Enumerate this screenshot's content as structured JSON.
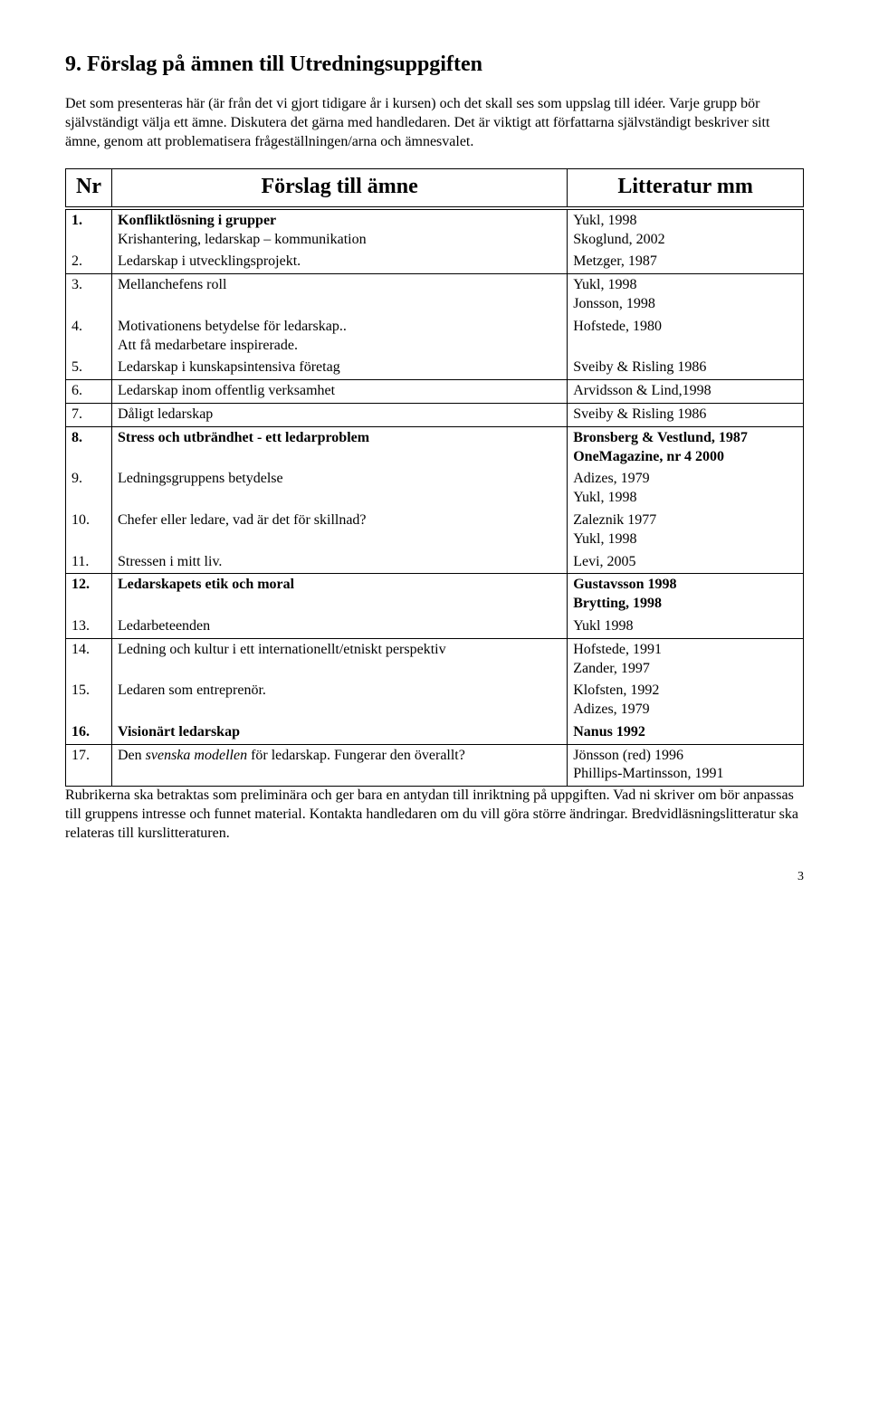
{
  "title": "9. Förslag på ämnen till Utredningsuppgiften",
  "para1": "Det som presenteras här (är från det vi gjort tidigare år i kursen) och det skall ses som uppslag till idéer. Varje grupp bör självständigt välja ett ämne. Diskutera det gärna med handledaren. Det är viktigt att författarna självständigt beskriver sitt ämne, genom att problematisera frågeställningen/arna och ämnesvalet.",
  "header": {
    "nr": "Nr",
    "topic": "Förslag till ämne",
    "lit": "Litteratur mm"
  },
  "rows": [
    {
      "nr": "1.",
      "topic_html": "<span class='bold'>Konfliktlösning i grupper</span><br>Krishantering, ledarskap – kommunikation",
      "lit_html": "Yukl, 1998<br>Skoglund, 2002",
      "sep": false
    },
    {
      "nr": "2.",
      "topic_html": "Ledarskap i utvecklingsprojekt.",
      "lit_html": "Metzger, 1987",
      "sep": true
    },
    {
      "nr": "3.",
      "topic_html": "Mellanchefens roll",
      "lit_html": "Yukl, 1998<br>Jonsson, 1998",
      "sep": false
    },
    {
      "nr": "4.",
      "topic_html": "Motivationens betydelse för ledarskap..<br>Att få medarbetare inspirerade.",
      "lit_html": "Hofstede, 1980",
      "sep": false
    },
    {
      "nr": "5.",
      "topic_html": "Ledarskap i kunskapsintensiva företag",
      "lit_html": "Sveiby & Risling 1986",
      "sep": true
    },
    {
      "nr": "6.",
      "topic_html": "Ledarskap inom offentlig verksamhet",
      "lit_html": "Arvidsson & Lind,1998",
      "sep": true
    },
    {
      "nr": "7.",
      "topic_html": "Dåligt ledarskap",
      "lit_html": "Sveiby & Risling 1986",
      "sep": true
    },
    {
      "nr": "8.",
      "topic_html": "<span class='bold'>Stress och utbrändhet - ett ledarproblem</span>",
      "lit_html": "<span class='bold'>Bronsberg & Vestlund, 1987<br>OneMagazine, nr 4  2000</span>",
      "sep": false
    },
    {
      "nr": "9.",
      "topic_html": "Ledningsgruppens betydelse",
      "lit_html": "Adizes, 1979<br>Yukl, 1998",
      "sep": false
    },
    {
      "nr": "10.",
      "topic_html": "Chefer eller ledare, vad är det för skillnad?",
      "lit_html": "Zaleznik 1977<br>Yukl, 1998",
      "sep": false
    },
    {
      "nr": "11.",
      "topic_html": "Stressen i mitt liv.",
      "lit_html": "Levi, 2005",
      "sep": true
    },
    {
      "nr": "12.",
      "topic_html": "<span class='bold'>Ledarskapets etik och moral</span>",
      "lit_html": "<span class='bold'>Gustavsson 1998<br>Brytting, 1998</span>",
      "sep": false
    },
    {
      "nr": "13.",
      "topic_html": "Ledarbeteenden",
      "lit_html": "Yukl 1998",
      "sep": true
    },
    {
      "nr": "14.",
      "topic_html": "Ledning och kultur i ett internationellt/etniskt perspektiv",
      "lit_html": "Hofstede, 1991<br>Zander, 1997",
      "sep": false
    },
    {
      "nr": "15.",
      "topic_html": "Ledaren som entreprenör.",
      "lit_html": "Klofsten, 1992<br>Adizes, 1979",
      "sep": false
    },
    {
      "nr": "16.",
      "topic_html": "<span class='bold'>Visionärt ledarskap</span>",
      "lit_html": "<span class='bold'>Nanus 1992</span>",
      "sep": true
    },
    {
      "nr": "17.",
      "topic_html": "Den <span class='italic'>svenska modellen</span> för ledarskap. Fungerar den överallt?",
      "lit_html": "Jönsson (red) 1996<br>Phillips-Martinsson, 1991",
      "sep": true
    }
  ],
  "para2": "Rubrikerna ska betraktas som preliminära och ger bara en antydan till inriktning på uppgiften. Vad ni skriver om bör anpassas till gruppens intresse och funnet material. Kontakta handledaren om du vill göra större ändringar. Bredvidläsningslitteratur ska relateras till kurslitteraturen.",
  "pageNumber": "3"
}
